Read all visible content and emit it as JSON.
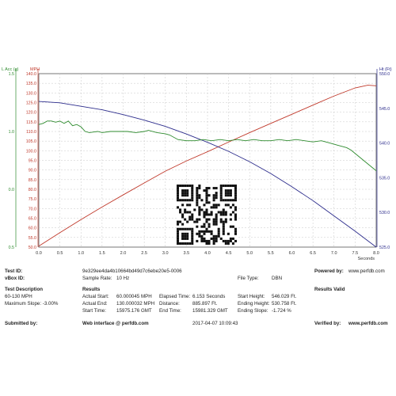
{
  "colors": {
    "mph": "#c0392b",
    "height": "#2c2c8c",
    "accel": "#2e8b2e",
    "grid": "#c8c8c8",
    "axis": "#555555"
  },
  "chart_data": {
    "type": "line",
    "xlabel": "Seconds",
    "xlim": [
      0,
      8.0
    ],
    "x_ticks": [
      "0.0",
      "0.5",
      "1.0",
      "1.5",
      "2.0",
      "2.5",
      "3.0",
      "3.5",
      "4.0",
      "4.5",
      "5.0",
      "5.5",
      "6.0",
      "6.5",
      "7.0",
      "7.5",
      "8.0"
    ],
    "axes": {
      "mph": {
        "label": "MPH",
        "lim": [
          50,
          140
        ],
        "ticks": [
          "50.0",
          "55.0",
          "60.0",
          "65.0",
          "70.0",
          "75.0",
          "80.0",
          "85.0",
          "90.0",
          "95.0",
          "100.0",
          "105.0",
          "110.0",
          "115.0",
          "120.0",
          "125.0",
          "130.0",
          "135.0",
          "140.0"
        ]
      },
      "accel": {
        "label": "L Acc (g)",
        "lim": [
          0,
          1.5
        ],
        "ticks": [
          "0.5",
          "0.0",
          "1.0",
          "1.5"
        ]
      },
      "height": {
        "label": "Ht (Ft)",
        "lim": [
          525,
          550
        ],
        "ticks": [
          "525.0",
          "530.0",
          "535.0",
          "540.0",
          "545.0",
          "550.0"
        ]
      }
    },
    "series": [
      {
        "axis": "mph",
        "x": [
          0.0,
          0.5,
          1.0,
          1.5,
          2.0,
          2.5,
          3.0,
          3.5,
          4.0,
          4.5,
          5.0,
          5.5,
          6.0,
          6.5,
          7.0,
          7.5,
          7.8,
          8.0
        ],
        "y": [
          50.5,
          57.5,
          64.3,
          70.8,
          77.1,
          83.3,
          89.4,
          94.7,
          99.5,
          104.5,
          109.4,
          114.2,
          118.9,
          123.7,
          128.4,
          132.6,
          134.0,
          133.7
        ]
      },
      {
        "axis": "height",
        "x": [
          0.0,
          0.5,
          1.0,
          1.5,
          2.0,
          2.5,
          3.0,
          3.5,
          4.0,
          4.5,
          5.0,
          5.5,
          6.0,
          6.5,
          7.0,
          7.5,
          8.0
        ],
        "y": [
          546.0,
          545.8,
          545.3,
          544.8,
          544.1,
          543.3,
          542.4,
          541.3,
          540.1,
          538.8,
          537.3,
          535.6,
          533.7,
          531.7,
          529.5,
          527.3,
          525.0
        ]
      },
      {
        "axis": "accel",
        "x": [
          0.0,
          0.1,
          0.2,
          0.3,
          0.4,
          0.5,
          0.6,
          0.7,
          0.8,
          0.9,
          1.0,
          1.1,
          1.2,
          1.3,
          1.4,
          1.5,
          1.7,
          1.9,
          2.1,
          2.3,
          2.5,
          2.6,
          2.8,
          3.0,
          3.1,
          3.3,
          3.5,
          3.7,
          3.9,
          4.1,
          4.3,
          4.5,
          4.7,
          4.9,
          5.1,
          5.3,
          5.5,
          5.7,
          5.9,
          6.1,
          6.3,
          6.5,
          6.7,
          6.9,
          7.1,
          7.3,
          7.4,
          7.6,
          7.8,
          8.0
        ],
        "y": [
          1.06,
          1.07,
          1.09,
          1.09,
          1.08,
          1.09,
          1.07,
          1.09,
          1.05,
          1.06,
          1.04,
          1.0,
          0.99,
          0.995,
          1.0,
          0.99,
          1.0,
          1.0,
          1.0,
          0.99,
          1.0,
          1.01,
          0.99,
          0.98,
          0.97,
          0.93,
          0.92,
          0.92,
          0.93,
          0.92,
          0.93,
          0.92,
          0.93,
          0.92,
          0.93,
          0.92,
          0.92,
          0.93,
          0.92,
          0.93,
          0.92,
          0.91,
          0.92,
          0.9,
          0.88,
          0.86,
          0.84,
          0.78,
          0.72,
          0.66
        ]
      }
    ]
  },
  "info": {
    "test_id_label": "Test ID:",
    "test_id_value": "9e329ee4da4b10664bd49d7c6ebe20e5-0006",
    "powered_by_label": "Powered by:",
    "powered_by_value": "www.perfdb.com",
    "vbox_id_label": "vBox ID:",
    "sample_rate_label": "Sample Rate:",
    "sample_rate_value": "10 Hz",
    "file_type_label": "File Type:",
    "file_type_value": "DBN",
    "test_description_label": "Test Description",
    "results_label": "Results",
    "results_valid": "Results Valid",
    "description_line1": "60-130 MPH",
    "description_line2": "Maximum Slope: -3.00%",
    "actual_start_label": "Actual Start:",
    "actual_start_value": "60.000045 MPH",
    "actual_end_label": "Actual End:",
    "actual_end_value": "130.000032 MPH",
    "start_time_label": "Start Time:",
    "start_time_value": "15975.176 GMT",
    "elapsed_time_label": "Elapsed Time:",
    "elapsed_time_value": "6.153 Seconds",
    "distance_label": "Distance:",
    "distance_value": "885.897 Ft.",
    "end_time_label": "End Time:",
    "end_time_value": "15981.329 GMT",
    "start_height_label": "Start Height:",
    "start_height_value": "546.029 Ft.",
    "ending_height_label": "Ending Height:",
    "ending_height_value": "530.758 Ft.",
    "ending_slope_label": "Ending Slope:",
    "ending_slope_value": "-1.724 %",
    "submitted_by_label": "Submitted by:",
    "web_interface": "Web interface @ perfdb.com",
    "timestamp": "2017-04-07 10:09:43",
    "verified_by_label": "Verified by:",
    "verified_by_value": "www.perfdb.com"
  },
  "qr_icon": "qr-code-icon"
}
